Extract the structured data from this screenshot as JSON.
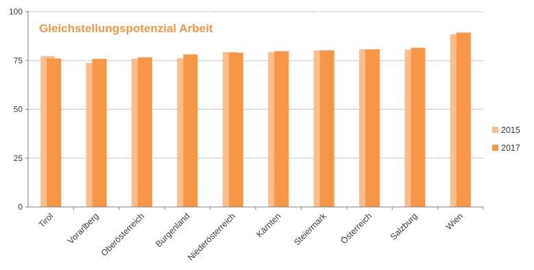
{
  "chart_data": {
    "type": "bar",
    "title": "Gleichstellungspotenzial Arbeit",
    "xlabel": "",
    "ylabel": "",
    "ylim": [
      0,
      100
    ],
    "yticks": [
      0,
      25,
      50,
      75,
      100
    ],
    "grid": true,
    "legend_position": "right",
    "categories": [
      "Tirol",
      "Vorarlberg",
      "Oberösterreich",
      "Burgenland",
      "Niederösterreich",
      "Kärnten",
      "Steiermark",
      "Österreich",
      "Salzburg",
      "Wien"
    ],
    "series": [
      {
        "name": "2015",
        "color": "#f9be8c",
        "values": [
          77.2,
          73.8,
          75.9,
          76.2,
          79.3,
          79.2,
          80.1,
          80.7,
          80.6,
          88.4
        ]
      },
      {
        "name": "2017",
        "color": "#f79646",
        "values": [
          76.0,
          75.8,
          76.6,
          78.1,
          78.9,
          79.8,
          80.2,
          80.7,
          81.5,
          89.3
        ]
      }
    ],
    "title_color": "#f79646"
  }
}
